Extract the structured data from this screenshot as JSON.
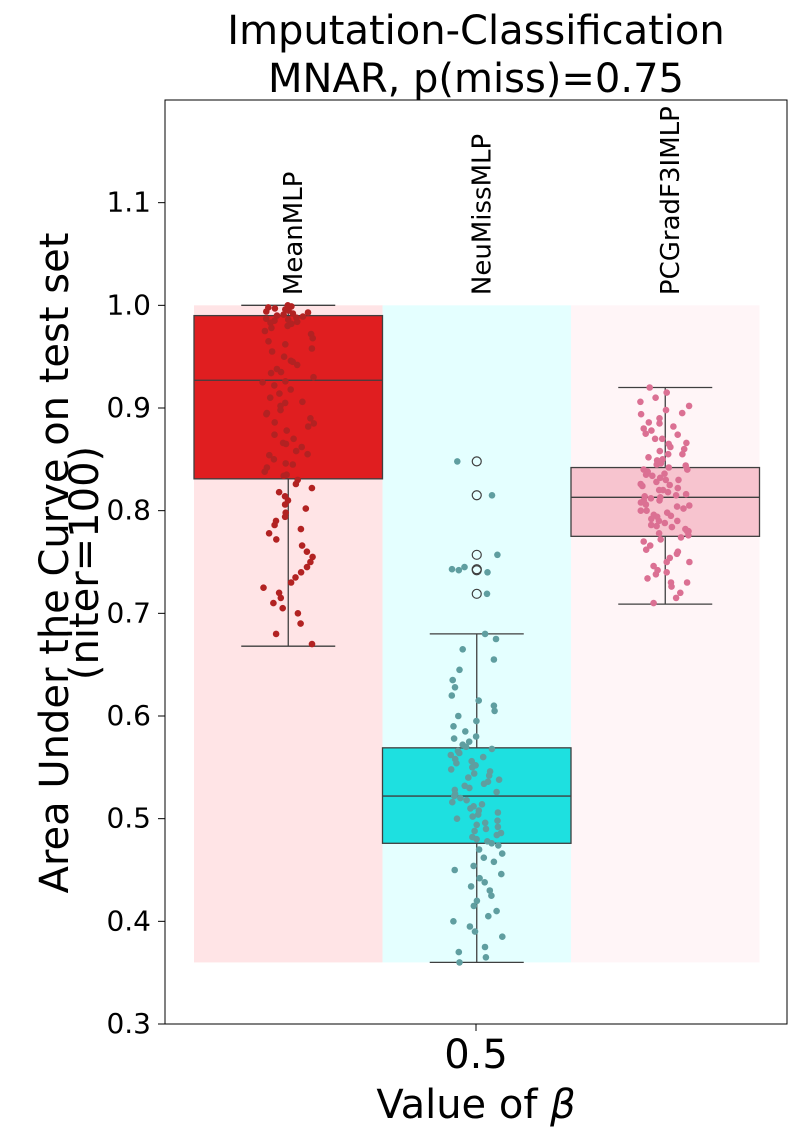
{
  "chart_data": {
    "type": "box",
    "title_line1": "Imputation-Classification",
    "title_line2": "MNAR, p(miss)=0.75",
    "ylabel_line1": "Area Under the Curve on test set",
    "ylabel_line2": "(niter=100)",
    "xlabel_prefix": "Value of ",
    "xlabel_symbol": "β",
    "x_tick": "0.5",
    "ylim": [
      0.3,
      1.2
    ],
    "y_ticks": [
      "0.3",
      "0.4",
      "0.5",
      "0.6",
      "0.7",
      "0.8",
      "0.9",
      "1.0",
      "1.1"
    ],
    "y_tick_values": [
      0.3,
      0.4,
      0.5,
      0.6,
      0.7,
      0.8,
      0.9,
      1.0,
      1.1
    ],
    "background_range": [
      0.36,
      1.0
    ],
    "groups": [
      {
        "name": "MeanMLP",
        "box_color": "#e01e20",
        "bg_color": "#ffe1e3",
        "point_color": "#b22222",
        "q1": 0.831,
        "median": 0.927,
        "q3": 0.99,
        "whisker_low": 0.668,
        "whisker_high": 1.0,
        "outliers": [],
        "points": [
          1.0,
          0.999,
          0.998,
          0.997,
          0.996,
          0.995,
          0.994,
          0.993,
          0.992,
          0.991,
          0.99,
          0.989,
          0.988,
          0.987,
          0.986,
          0.985,
          0.984,
          0.983,
          0.982,
          0.98,
          0.978,
          0.975,
          0.972,
          0.968,
          0.965,
          0.962,
          0.958,
          0.955,
          0.95,
          0.946,
          0.942,
          0.938,
          0.934,
          0.93,
          0.926,
          0.922,
          0.918,
          0.914,
          0.91,
          0.906,
          0.902,
          0.898,
          0.894,
          0.89,
          0.886,
          0.882,
          0.878,
          0.874,
          0.87,
          0.866,
          0.862,
          0.858,
          0.854,
          0.85,
          0.846,
          0.842,
          0.838,
          0.834,
          0.83,
          0.826,
          0.822,
          0.818,
          0.814,
          0.81,
          0.806,
          0.802,
          0.798,
          0.794,
          0.79,
          0.786,
          0.782,
          0.778,
          0.772,
          0.766,
          0.76,
          0.755,
          0.75,
          0.745,
          0.74,
          0.735,
          0.73,
          0.725,
          0.72,
          0.715,
          0.71,
          0.705,
          0.7,
          0.69,
          0.68,
          0.67,
          0.925,
          0.935,
          0.945,
          0.905,
          0.895,
          0.885,
          0.865,
          0.855,
          0.845,
          0.835
        ]
      },
      {
        "name": "NeuMissMLP",
        "box_color": "#1ee0e0",
        "bg_color": "#e1ffff",
        "point_color": "#5f9ea0",
        "q1": 0.476,
        "median": 0.522,
        "q3": 0.569,
        "whisker_low": 0.36,
        "whisker_high": 0.68,
        "outliers": [
          0.848,
          0.815,
          0.757,
          0.743,
          0.742,
          0.719
        ],
        "points": [
          0.848,
          0.815,
          0.757,
          0.745,
          0.743,
          0.742,
          0.74,
          0.719,
          0.68,
          0.675,
          0.665,
          0.655,
          0.645,
          0.635,
          0.628,
          0.62,
          0.615,
          0.61,
          0.605,
          0.6,
          0.595,
          0.59,
          0.585,
          0.58,
          0.578,
          0.575,
          0.572,
          0.57,
          0.568,
          0.566,
          0.564,
          0.562,
          0.56,
          0.558,
          0.556,
          0.554,
          0.552,
          0.55,
          0.548,
          0.546,
          0.544,
          0.542,
          0.54,
          0.538,
          0.536,
          0.534,
          0.532,
          0.53,
          0.528,
          0.526,
          0.524,
          0.522,
          0.52,
          0.518,
          0.516,
          0.514,
          0.512,
          0.51,
          0.508,
          0.506,
          0.504,
          0.502,
          0.5,
          0.498,
          0.496,
          0.494,
          0.492,
          0.49,
          0.488,
          0.486,
          0.484,
          0.482,
          0.48,
          0.478,
          0.476,
          0.474,
          0.47,
          0.466,
          0.462,
          0.458,
          0.454,
          0.45,
          0.446,
          0.442,
          0.438,
          0.434,
          0.43,
          0.425,
          0.42,
          0.415,
          0.41,
          0.405,
          0.4,
          0.395,
          0.39,
          0.385,
          0.375,
          0.37,
          0.365,
          0.36
        ]
      },
      {
        "name": "PCGradF3IMLP",
        "box_color": "#f7c4cf",
        "bg_color": "#fff4f6",
        "point_color": "#db7093",
        "q1": 0.775,
        "median": 0.813,
        "q3": 0.842,
        "whisker_low": 0.709,
        "whisker_high": 0.92,
        "outliers": [],
        "points": [
          0.92,
          0.915,
          0.91,
          0.906,
          0.902,
          0.898,
          0.894,
          0.89,
          0.886,
          0.882,
          0.878,
          0.874,
          0.87,
          0.866,
          0.862,
          0.858,
          0.855,
          0.852,
          0.849,
          0.846,
          0.844,
          0.842,
          0.84,
          0.838,
          0.836,
          0.834,
          0.832,
          0.83,
          0.828,
          0.826,
          0.824,
          0.822,
          0.82,
          0.818,
          0.816,
          0.814,
          0.813,
          0.812,
          0.81,
          0.808,
          0.806,
          0.804,
          0.802,
          0.8,
          0.798,
          0.796,
          0.794,
          0.792,
          0.79,
          0.788,
          0.786,
          0.784,
          0.782,
          0.78,
          0.778,
          0.776,
          0.774,
          0.772,
          0.77,
          0.766,
          0.762,
          0.758,
          0.754,
          0.75,
          0.746,
          0.742,
          0.738,
          0.734,
          0.73,
          0.726,
          0.72,
          0.715,
          0.71,
          0.825,
          0.835,
          0.815,
          0.805,
          0.795,
          0.785,
          0.845,
          0.855,
          0.865,
          0.875,
          0.885,
          0.895,
          0.76,
          0.75,
          0.74,
          0.73,
          0.82,
          0.81,
          0.8,
          0.79,
          0.78,
          0.83,
          0.84,
          0.85,
          0.86,
          0.87,
          0.88
        ]
      }
    ]
  }
}
